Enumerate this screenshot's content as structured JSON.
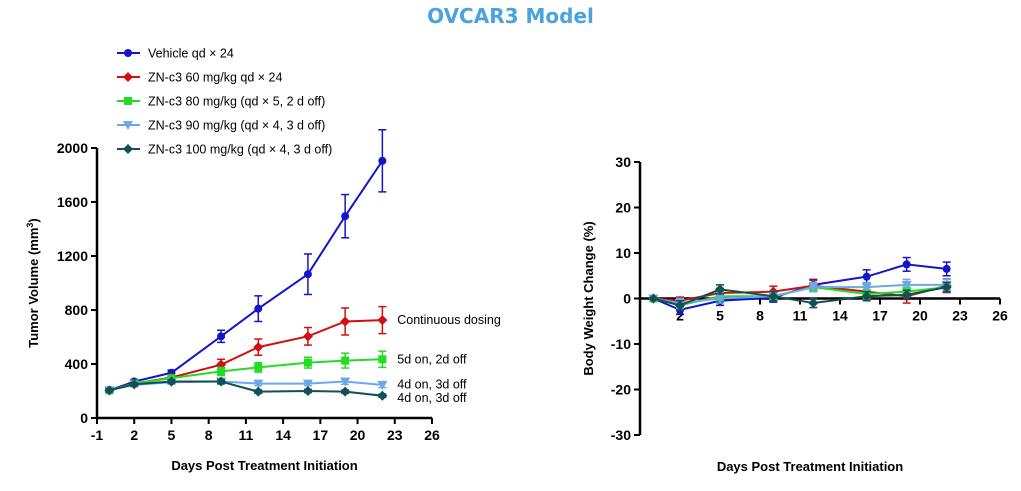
{
  "title": "OVCAR3 Model",
  "chart_data": [
    {
      "type": "line",
      "xlabel": "Days Post Treatment Initiation",
      "ylabel": "Tumor Volume (mm",
      "ylabel_sup": "3",
      "ylabel_end": ")",
      "xlim": [
        -1,
        26
      ],
      "ylim": [
        0,
        2000
      ],
      "xticks": [
        -1,
        2,
        5,
        8,
        11,
        14,
        17,
        20,
        23,
        26
      ],
      "yticks": [
        0,
        400,
        800,
        1200,
        1600,
        2000
      ],
      "legend_position": "top-left",
      "series": [
        {
          "name": "Vehicle qd × 24",
          "color": "#1414c8",
          "marker": "circle",
          "x": [
            0,
            2,
            5,
            9,
            12,
            16,
            19,
            22
          ],
          "y": [
            205,
            270,
            335,
            605,
            810,
            1065,
            1495,
            1905
          ],
          "err": [
            15,
            15,
            20,
            45,
            95,
            150,
            160,
            230
          ]
        },
        {
          "name": "ZN-c3 60 mg/kg qd × 24",
          "color": "#d01010",
          "marker": "diamond",
          "x": [
            0,
            2,
            5,
            9,
            12,
            16,
            19,
            22
          ],
          "y": [
            205,
            255,
            300,
            395,
            525,
            605,
            715,
            725
          ],
          "err": [
            15,
            15,
            20,
            40,
            60,
            65,
            100,
            100
          ]
        },
        {
          "name": "ZN-c3 80 mg/kg (qd × 5, 2 d off)",
          "color": "#22dd22",
          "marker": "square",
          "x": [
            0,
            2,
            5,
            9,
            12,
            16,
            19,
            22
          ],
          "y": [
            205,
            255,
            295,
            345,
            375,
            410,
            425,
            435
          ],
          "err": [
            15,
            15,
            15,
            30,
            35,
            40,
            55,
            60
          ]
        },
        {
          "name": "ZN-c3 90 mg/kg (qd × 4, 3 d off)",
          "color": "#6aa8e8",
          "marker": "triangle-down",
          "x": [
            0,
            2,
            5,
            9,
            12,
            16,
            19,
            22
          ],
          "y": [
            205,
            245,
            265,
            270,
            255,
            255,
            270,
            245
          ],
          "err": [
            15,
            12,
            15,
            20,
            15,
            15,
            20,
            20
          ]
        },
        {
          "name": "ZN-c3 100 mg/kg (qd × 4, 3 d off)",
          "color": "#144e56",
          "marker": "diamond",
          "x": [
            0,
            2,
            5,
            9,
            12,
            16,
            19,
            22
          ],
          "y": [
            205,
            250,
            270,
            270,
            195,
            200,
            195,
            165
          ],
          "err": [
            12,
            12,
            12,
            15,
            12,
            12,
            12,
            12
          ]
        }
      ],
      "annotations": [
        {
          "text": "Continuous dosing",
          "x": 23.2,
          "y": 725
        },
        {
          "text": "5d on, 2d off",
          "x": 23.2,
          "y": 435
        },
        {
          "text": "4d on, 3d off",
          "x": 23.2,
          "y": 250
        },
        {
          "text": "4d on, 3d off",
          "x": 23.2,
          "y": 150
        }
      ]
    },
    {
      "type": "line",
      "xlabel": "Days Post Treatment Initiation",
      "ylabel": "Body Weight Change (%)",
      "xlim": [
        -1,
        26
      ],
      "ylim": [
        -30,
        30
      ],
      "xticks": [
        2,
        5,
        8,
        11,
        14,
        17,
        20,
        23,
        26
      ],
      "yticks": [
        -30,
        -20,
        -10,
        0,
        10,
        20,
        30
      ],
      "series": [
        {
          "name": "Vehicle qd × 24",
          "color": "#1414c8",
          "marker": "circle",
          "x": [
            0,
            2,
            5,
            9,
            12,
            16,
            19,
            22
          ],
          "y": [
            0,
            -2.5,
            -0.5,
            0.2,
            3,
            4.8,
            7.5,
            6.5
          ],
          "err": [
            0,
            1,
            1,
            1,
            1.2,
            1.5,
            1.5,
            1.5
          ]
        },
        {
          "name": "ZN-c3 60 mg/kg qd × 24",
          "color": "#d01010",
          "marker": "diamond",
          "x": [
            0,
            2,
            5,
            9,
            12,
            16,
            19,
            22
          ],
          "y": [
            0,
            -0.5,
            1.2,
            1.5,
            2.8,
            1.5,
            0.5,
            2.8
          ],
          "err": [
            0,
            0.8,
            1,
            1.2,
            1.2,
            1,
            1.5,
            1.5
          ]
        },
        {
          "name": "ZN-c3 80 mg/kg (qd × 5, 2 d off)",
          "color": "#22dd22",
          "marker": "square",
          "x": [
            0,
            2,
            5,
            9,
            12,
            16,
            19,
            22
          ],
          "y": [
            0,
            -1.5,
            0.5,
            0.5,
            2.5,
            1,
            1.5,
            2.5
          ],
          "err": [
            0,
            1,
            1,
            1,
            1,
            1,
            1,
            1
          ]
        },
        {
          "name": "ZN-c3 90 mg/kg (qd × 4, 3 d off)",
          "color": "#6aa8e8",
          "marker": "triangle-down",
          "x": [
            0,
            2,
            5,
            9,
            12,
            16,
            19,
            22
          ],
          "y": [
            0,
            -1,
            0,
            0.5,
            2.5,
            2.5,
            3,
            3
          ],
          "err": [
            0,
            1,
            1,
            1,
            1,
            1,
            1.2,
            1.2
          ]
        },
        {
          "name": "ZN-c3 100 mg/kg (qd × 4, 3 d off)",
          "color": "#144e56",
          "marker": "diamond",
          "x": [
            0,
            2,
            5,
            9,
            12,
            16,
            19,
            22
          ],
          "y": [
            0,
            -1.5,
            2,
            0.5,
            -1,
            0.5,
            0.8,
            2.5
          ],
          "err": [
            0,
            1,
            1,
            1,
            1,
            1,
            1,
            1
          ]
        }
      ]
    }
  ]
}
